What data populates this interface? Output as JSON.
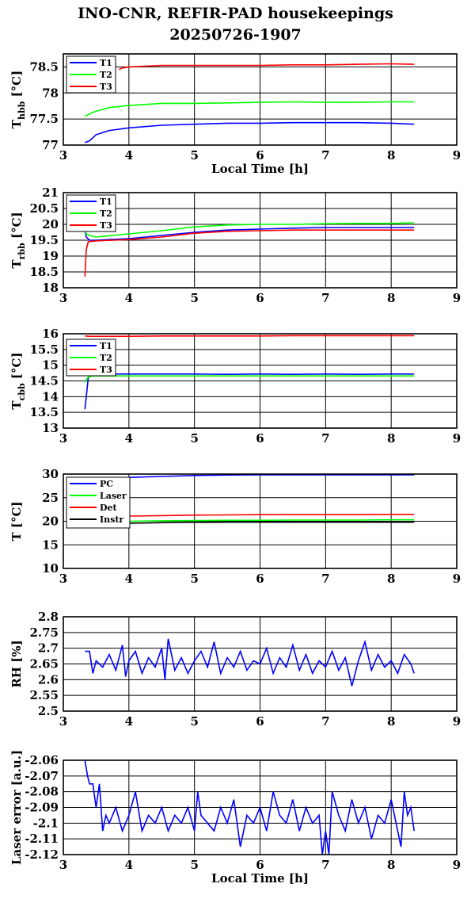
{
  "title": {
    "line1": "INO-CNR, REFIR-PAD housekeepings",
    "line2": "20250726-1907"
  },
  "colors": {
    "blue": "#0000ff",
    "green": "#00ff00",
    "red": "#ff0000",
    "black": "#000000"
  },
  "chart_data": [
    {
      "type": "line",
      "ylabel": "T",
      "ylabel_sub": "hbb",
      "ylabel_unit": " [°C]",
      "xlabel": "Local Time [h]",
      "xlim": [
        3,
        9
      ],
      "ylim": [
        77,
        78.75
      ],
      "xticks": [
        "3",
        "4",
        "5",
        "6",
        "7",
        "8",
        "9"
      ],
      "yticks": [
        "77",
        "77.5",
        "78",
        "78.5"
      ],
      "legend_position": "top-left",
      "series": [
        {
          "name": "T1",
          "color": "#0000ff",
          "x": [
            3.33,
            3.4,
            3.5,
            3.7,
            4,
            4.5,
            5,
            5.5,
            6,
            6.5,
            7,
            7.5,
            8,
            8.35
          ],
          "y": [
            77.05,
            77.08,
            77.2,
            77.28,
            77.33,
            77.38,
            77.4,
            77.42,
            77.42,
            77.43,
            77.43,
            77.43,
            77.42,
            77.4
          ]
        },
        {
          "name": "T2",
          "color": "#00ff00",
          "x": [
            3.33,
            3.4,
            3.5,
            3.7,
            4,
            4.5,
            5,
            5.5,
            6,
            6.5,
            7,
            7.5,
            8,
            8.35
          ],
          "y": [
            77.55,
            77.6,
            77.65,
            77.72,
            77.76,
            77.8,
            77.8,
            77.81,
            77.82,
            77.83,
            77.82,
            77.82,
            77.83,
            77.83
          ]
        },
        {
          "name": "T3",
          "color": "#ff0000",
          "x": [
            3.85,
            3.9,
            4,
            4.5,
            5,
            5.5,
            6,
            6.5,
            7,
            7.5,
            8,
            8.35
          ],
          "y": [
            78.45,
            78.48,
            78.5,
            78.53,
            78.53,
            78.53,
            78.53,
            78.54,
            78.54,
            78.55,
            78.56,
            78.55
          ]
        }
      ]
    },
    {
      "type": "line",
      "ylabel": "T",
      "ylabel_sub": "rbb",
      "ylabel_unit": " [°C]",
      "xlabel": "",
      "xlim": [
        3,
        9
      ],
      "ylim": [
        18,
        21
      ],
      "xticks": [
        "3",
        "4",
        "5",
        "6",
        "7",
        "8",
        "9"
      ],
      "yticks": [
        "18",
        "18.5",
        "19",
        "19.5",
        "20",
        "20.5",
        "21"
      ],
      "legend_position": "top-left",
      "series": [
        {
          "name": "T1",
          "color": "#0000ff",
          "x": [
            3.33,
            3.35,
            3.4,
            3.5,
            4,
            4.5,
            5,
            5.5,
            6,
            6.5,
            7,
            7.5,
            8,
            8.35
          ],
          "y": [
            19.8,
            19.6,
            19.5,
            19.5,
            19.55,
            19.65,
            19.75,
            19.82,
            19.85,
            19.88,
            19.9,
            19.9,
            19.9,
            19.9
          ]
        },
        {
          "name": "T2",
          "color": "#00ff00",
          "x": [
            3.33,
            3.35,
            3.4,
            3.5,
            4,
            4.5,
            5,
            5.5,
            6,
            6.5,
            7,
            7.5,
            8,
            8.35
          ],
          "y": [
            19.8,
            19.7,
            19.65,
            19.6,
            19.7,
            19.8,
            19.92,
            19.98,
            20.0,
            20.0,
            20.02,
            20.03,
            20.03,
            20.05
          ]
        },
        {
          "name": "T3",
          "color": "#ff0000",
          "x": [
            3.33,
            3.35,
            3.38,
            3.5,
            4,
            4.5,
            5,
            5.5,
            6,
            6.5,
            7,
            7.5,
            8,
            8.35
          ],
          "y": [
            18.35,
            19.2,
            19.45,
            19.48,
            19.52,
            19.6,
            19.72,
            19.78,
            19.8,
            19.82,
            19.82,
            19.82,
            19.82,
            19.82
          ]
        }
      ]
    },
    {
      "type": "line",
      "ylabel": "T",
      "ylabel_sub": "cbb",
      "ylabel_unit": " [°C]",
      "xlabel": "",
      "xlim": [
        3,
        9
      ],
      "ylim": [
        13,
        16
      ],
      "xticks": [
        "3",
        "4",
        "5",
        "6",
        "7",
        "8",
        "9"
      ],
      "yticks": [
        "13",
        "13.5",
        "14",
        "14.5",
        "15",
        "15.5",
        "16"
      ],
      "legend_position": "top-left",
      "series": [
        {
          "name": "T1",
          "color": "#0000ff",
          "x": [
            3.33,
            3.35,
            3.38,
            3.45,
            4,
            4.5,
            5,
            5.5,
            6,
            6.5,
            7,
            7.5,
            8,
            8.35
          ],
          "y": [
            13.6,
            14.0,
            14.6,
            14.72,
            14.72,
            14.72,
            14.72,
            14.71,
            14.72,
            14.71,
            14.72,
            14.71,
            14.72,
            14.72
          ]
        },
        {
          "name": "T2",
          "color": "#00ff00",
          "x": [
            3.33,
            3.35,
            3.38,
            3.45,
            4,
            4.5,
            5,
            5.5,
            6,
            6.5,
            7,
            7.5,
            8,
            8.35
          ],
          "y": [
            14.45,
            14.55,
            14.62,
            14.66,
            14.66,
            14.66,
            14.66,
            14.66,
            14.66,
            14.66,
            14.66,
            14.66,
            14.66,
            14.66
          ]
        },
        {
          "name": "T3",
          "color": "#ff0000",
          "x": [
            3.33,
            3.4,
            4,
            4.5,
            5,
            5.5,
            6,
            6.5,
            7,
            7.5,
            8,
            8.35
          ],
          "y": [
            15.93,
            15.92,
            15.92,
            15.93,
            15.93,
            15.93,
            15.93,
            15.94,
            15.94,
            15.94,
            15.94,
            15.94
          ]
        }
      ]
    },
    {
      "type": "line",
      "ylabel": "T [°C]",
      "ylabel_sub": "",
      "ylabel_unit": "",
      "xlabel": "",
      "xlim": [
        3,
        9
      ],
      "ylim": [
        10,
        30
      ],
      "xticks": [
        "3",
        "4",
        "5",
        "6",
        "7",
        "8",
        "9"
      ],
      "yticks": [
        "10",
        "15",
        "20",
        "25",
        "30"
      ],
      "legend_position": "top-left",
      "series": [
        {
          "name": "PC",
          "color": "#0000ff",
          "x": [
            3.33,
            4,
            4.5,
            5,
            5.5,
            6,
            6.5,
            7,
            7.5,
            8,
            8.35
          ],
          "y": [
            28.8,
            29.3,
            29.5,
            29.7,
            29.8,
            29.85,
            29.85,
            29.85,
            29.85,
            29.85,
            29.85
          ]
        },
        {
          "name": "Laser",
          "color": "#00ff00",
          "x": [
            3.33,
            4,
            4.5,
            5,
            5.5,
            6,
            6.5,
            7,
            7.5,
            8,
            8.35
          ],
          "y": [
            19.9,
            20.0,
            20.1,
            20.15,
            20.2,
            20.2,
            20.25,
            20.25,
            20.25,
            20.3,
            20.3
          ]
        },
        {
          "name": "Det",
          "color": "#ff0000",
          "x": [
            3.33,
            4,
            4.5,
            5,
            5.5,
            6,
            6.5,
            7,
            7.5,
            8,
            8.35
          ],
          "y": [
            21.1,
            21.1,
            21.2,
            21.3,
            21.35,
            21.4,
            21.4,
            21.4,
            21.4,
            21.45,
            21.45
          ]
        },
        {
          "name": "Instr",
          "color": "#000000",
          "x": [
            3.33,
            4,
            4.5,
            5,
            5.5,
            6,
            6.5,
            7,
            7.5,
            8,
            8.35
          ],
          "y": [
            19.5,
            19.6,
            19.7,
            19.75,
            19.8,
            19.8,
            19.8,
            19.8,
            19.8,
            19.8,
            19.8
          ]
        }
      ]
    },
    {
      "type": "line",
      "ylabel": "RH [%]",
      "ylabel_sub": "",
      "ylabel_unit": "",
      "xlabel": "",
      "xlim": [
        3,
        9
      ],
      "ylim": [
        2.5,
        2.8
      ],
      "xticks": [
        "3",
        "4",
        "5",
        "6",
        "7",
        "8",
        "9"
      ],
      "yticks": [
        "2.5",
        "2.55",
        "2.6",
        "2.65",
        "2.7",
        "2.75",
        "2.8"
      ],
      "legend_position": "none",
      "series": [
        {
          "name": "",
          "color": "#0000ff",
          "x": [
            3.33,
            3.4,
            3.45,
            3.5,
            3.6,
            3.7,
            3.8,
            3.9,
            3.95,
            4,
            4.1,
            4.2,
            4.3,
            4.4,
            4.5,
            4.55,
            4.6,
            4.7,
            4.8,
            4.9,
            5,
            5.1,
            5.2,
            5.3,
            5.4,
            5.5,
            5.6,
            5.7,
            5.8,
            5.9,
            6,
            6.1,
            6.2,
            6.3,
            6.4,
            6.5,
            6.6,
            6.7,
            6.8,
            6.9,
            7,
            7.1,
            7.2,
            7.3,
            7.4,
            7.5,
            7.6,
            7.7,
            7.8,
            7.9,
            8,
            8.1,
            8.2,
            8.3,
            8.35
          ],
          "y": [
            2.69,
            2.69,
            2.62,
            2.66,
            2.64,
            2.68,
            2.63,
            2.71,
            2.61,
            2.66,
            2.69,
            2.62,
            2.67,
            2.64,
            2.7,
            2.6,
            2.73,
            2.63,
            2.67,
            2.62,
            2.66,
            2.69,
            2.64,
            2.72,
            2.62,
            2.67,
            2.64,
            2.69,
            2.63,
            2.66,
            2.65,
            2.7,
            2.62,
            2.67,
            2.64,
            2.71,
            2.63,
            2.68,
            2.62,
            2.66,
            2.64,
            2.69,
            2.63,
            2.67,
            2.58,
            2.66,
            2.72,
            2.63,
            2.68,
            2.64,
            2.66,
            2.62,
            2.68,
            2.65,
            2.62
          ]
        }
      ]
    },
    {
      "type": "line",
      "ylabel": "Laser error [a.u.]",
      "ylabel_sub": "",
      "ylabel_unit": "",
      "xlabel": "Local Time [h]",
      "xlim": [
        3,
        9
      ],
      "ylim": [
        -2.12,
        -2.06
      ],
      "xticks": [
        "3",
        "4",
        "5",
        "6",
        "7",
        "8",
        "9"
      ],
      "yticks": [
        "-2.06",
        "-2.07",
        "-2.08",
        "-2.09",
        "-2.1",
        "-2.11",
        "-2.12"
      ],
      "legend_position": "none",
      "series": [
        {
          "name": "",
          "color": "#0000ff",
          "x": [
            3.33,
            3.37,
            3.4,
            3.45,
            3.5,
            3.55,
            3.6,
            3.65,
            3.7,
            3.8,
            3.9,
            4,
            4.1,
            4.2,
            4.3,
            4.4,
            4.5,
            4.6,
            4.7,
            4.8,
            4.9,
            5,
            5.05,
            5.1,
            5.2,
            5.3,
            5.4,
            5.5,
            5.6,
            5.7,
            5.8,
            5.9,
            6,
            6.1,
            6.2,
            6.3,
            6.4,
            6.5,
            6.6,
            6.7,
            6.8,
            6.9,
            6.95,
            7,
            7.05,
            7.1,
            7.2,
            7.3,
            7.4,
            7.5,
            7.6,
            7.7,
            7.8,
            7.9,
            8,
            8.1,
            8.15,
            8.2,
            8.25,
            8.3,
            8.35
          ],
          "y": [
            -2.06,
            -2.07,
            -2.075,
            -2.075,
            -2.09,
            -2.075,
            -2.105,
            -2.095,
            -2.1,
            -2.09,
            -2.105,
            -2.095,
            -2.08,
            -2.105,
            -2.095,
            -2.1,
            -2.09,
            -2.105,
            -2.095,
            -2.1,
            -2.09,
            -2.105,
            -2.08,
            -2.095,
            -2.1,
            -2.105,
            -2.09,
            -2.1,
            -2.085,
            -2.115,
            -2.095,
            -2.1,
            -2.09,
            -2.105,
            -2.08,
            -2.095,
            -2.1,
            -2.085,
            -2.105,
            -2.09,
            -2.1,
            -2.095,
            -2.12,
            -2.105,
            -2.12,
            -2.08,
            -2.095,
            -2.105,
            -2.085,
            -2.1,
            -2.09,
            -2.11,
            -2.095,
            -2.1,
            -2.085,
            -2.105,
            -2.115,
            -2.08,
            -2.095,
            -2.09,
            -2.105
          ]
        }
      ]
    }
  ]
}
